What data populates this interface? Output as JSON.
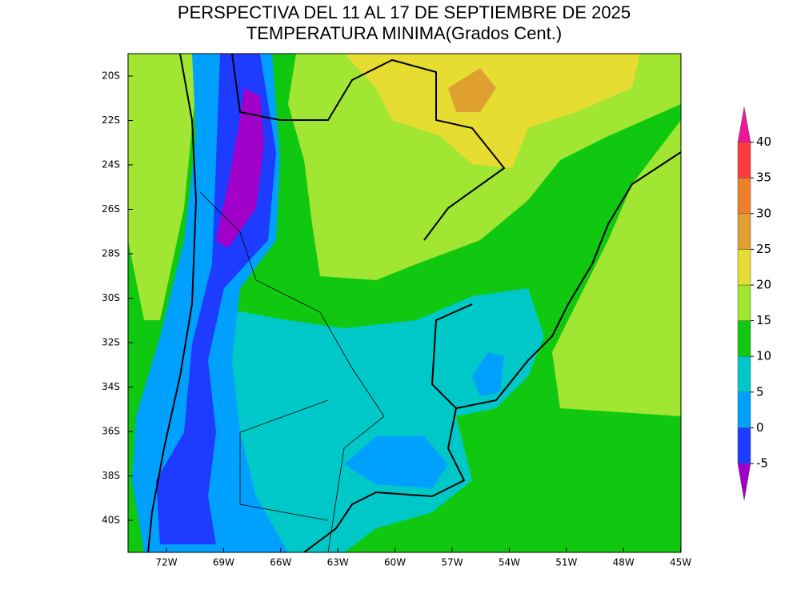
{
  "header": {
    "title": "PERSPECTIVA DEL 11 AL 17 DE SEPTIEMBRE DE 2025",
    "subtitle": "TEMPERATURA MINIMA(Grados Cent.)"
  },
  "map": {
    "lat_ticks": [
      "20S",
      "22S",
      "24S",
      "26S",
      "28S",
      "30S",
      "32S",
      "34S",
      "36S",
      "38S",
      "40S"
    ],
    "lon_ticks": [
      "72W",
      "69W",
      "66W",
      "63W",
      "60W",
      "57W",
      "54W",
      "51W",
      "48W",
      "45W"
    ]
  },
  "colorbar": {
    "levels": [
      -5,
      0,
      5,
      10,
      15,
      20,
      25,
      30,
      35,
      40
    ],
    "colors": [
      "#a000c8",
      "#1e3cff",
      "#00a0ff",
      "#00c8c8",
      "#10c810",
      "#a0e632",
      "#e6dc32",
      "#e0a030",
      "#f08028",
      "#fa3c3c",
      "#f0169a"
    ]
  }
}
